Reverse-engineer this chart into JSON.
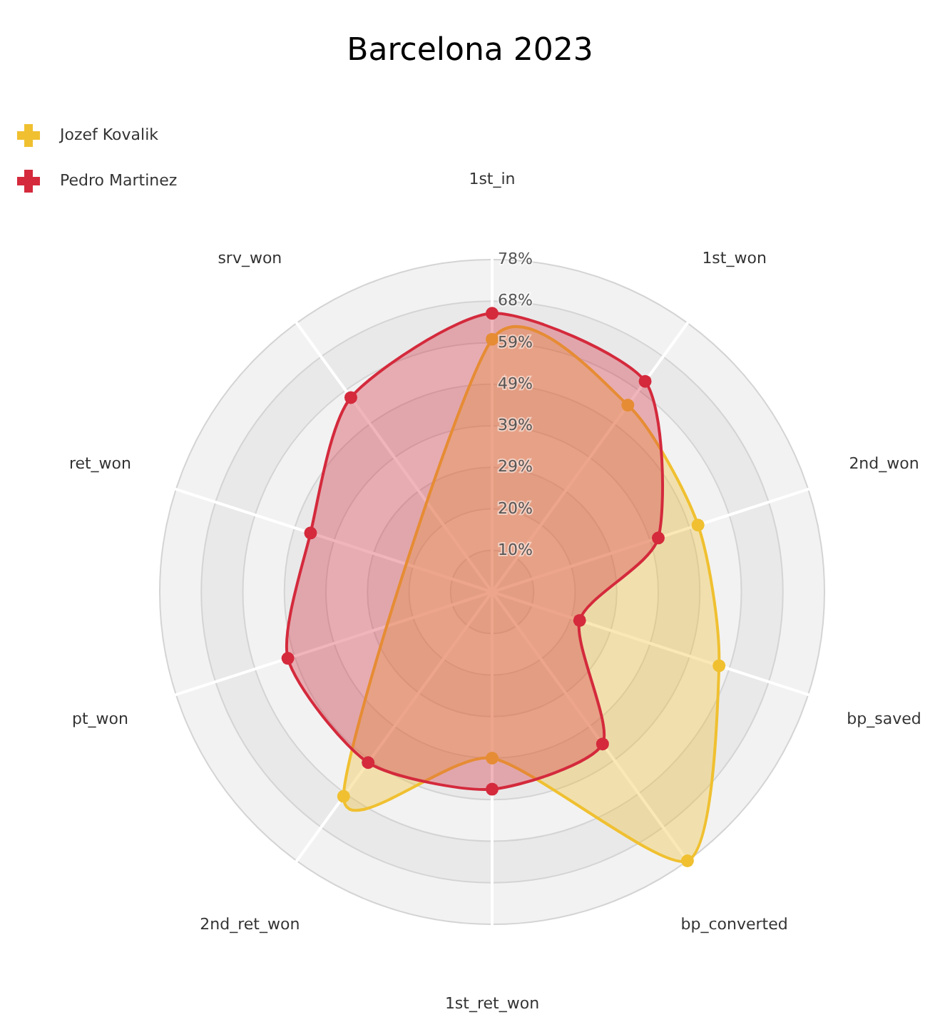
{
  "chart_data": {
    "type": "radar",
    "title": "Barcelona 2023",
    "categories": [
      "1st_in",
      "1st_won",
      "2nd_won",
      "bp_saved",
      "bp_converted",
      "1st_ret_won",
      "2nd_ret_won",
      "pt_won",
      "ret_won",
      "srv_won"
    ],
    "series": [
      {
        "name": "Jozef Kovalik",
        "color": "#f0c030",
        "values": [
          59.3,
          54.2,
          50.8,
          56.0,
          78.0,
          39.0,
          59.3,
          null,
          null,
          null
        ]
      },
      {
        "name": "Pedro Martinez",
        "color": "#d42a3c",
        "values": [
          65.4,
          61.1,
          41.0,
          21.6,
          44.1,
          46.3,
          49.5,
          50.4,
          44.8,
          56.4
        ]
      }
    ],
    "ylim": [
      0,
      78
    ],
    "yticks": [
      {
        "value": 9.75,
        "label": "10%"
      },
      {
        "value": 19.5,
        "label": "20%"
      },
      {
        "value": 29.25,
        "label": "29%"
      },
      {
        "value": 39,
        "label": "39%"
      },
      {
        "value": 48.75,
        "label": "49%"
      },
      {
        "value": 58.5,
        "label": "59%"
      },
      {
        "value": 68.25,
        "label": "68%"
      },
      {
        "value": 78,
        "label": "78%"
      }
    ],
    "grid": true,
    "legend": "top left",
    "marker": "circle"
  }
}
